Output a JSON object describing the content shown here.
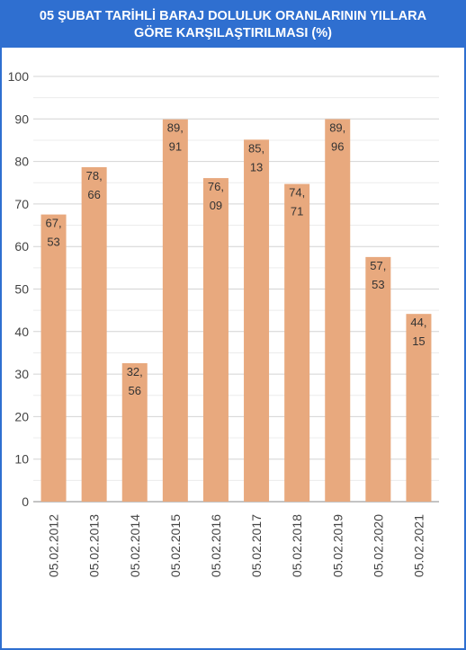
{
  "title_lines": [
    "05 ŞUBAT TARİHLİ BARAJ DOLULUK ORANLARININ YILLARA",
    "GÖRE KARŞILAŞTIRILMASI (%)"
  ],
  "colors": {
    "header": "#2f6fd0",
    "bar": "#e8a97e",
    "grid": "#dcdcdc",
    "axis_text": "#444444"
  },
  "chart_data": {
    "type": "bar",
    "title": "05 ŞUBAT TARİHLİ BARAJ DOLULUK ORANLARININ YILLARA GÖRE KARŞILAŞTIRILMASI (%)",
    "categories": [
      "05.02.2012",
      "05.02.2013",
      "05.02.2014",
      "05.02.2015",
      "05.02.2016",
      "05.02.2017",
      "05.02.2018",
      "05.02.2019",
      "05.02.2020",
      "05.02.2021"
    ],
    "values": [
      67.53,
      78.66,
      32.56,
      89.91,
      76.09,
      85.13,
      74.71,
      89.96,
      57.53,
      44.15
    ],
    "data_labels": [
      [
        "67,",
        "53"
      ],
      [
        "78,",
        "66"
      ],
      [
        "32,",
        "56"
      ],
      [
        "89,",
        "91"
      ],
      [
        "76,",
        "09"
      ],
      [
        "85,",
        "13"
      ],
      [
        "74,",
        "71"
      ],
      [
        "89,",
        "96"
      ],
      [
        "57,",
        "53"
      ],
      [
        "44,",
        "15"
      ]
    ],
    "yticks": [
      "0",
      "10",
      "20",
      "30",
      "40",
      "50",
      "60",
      "70",
      "80",
      "90",
      "100"
    ],
    "ylim": [
      0,
      100
    ],
    "xlabel": "",
    "ylabel": "",
    "grid": true,
    "legend": "none"
  }
}
